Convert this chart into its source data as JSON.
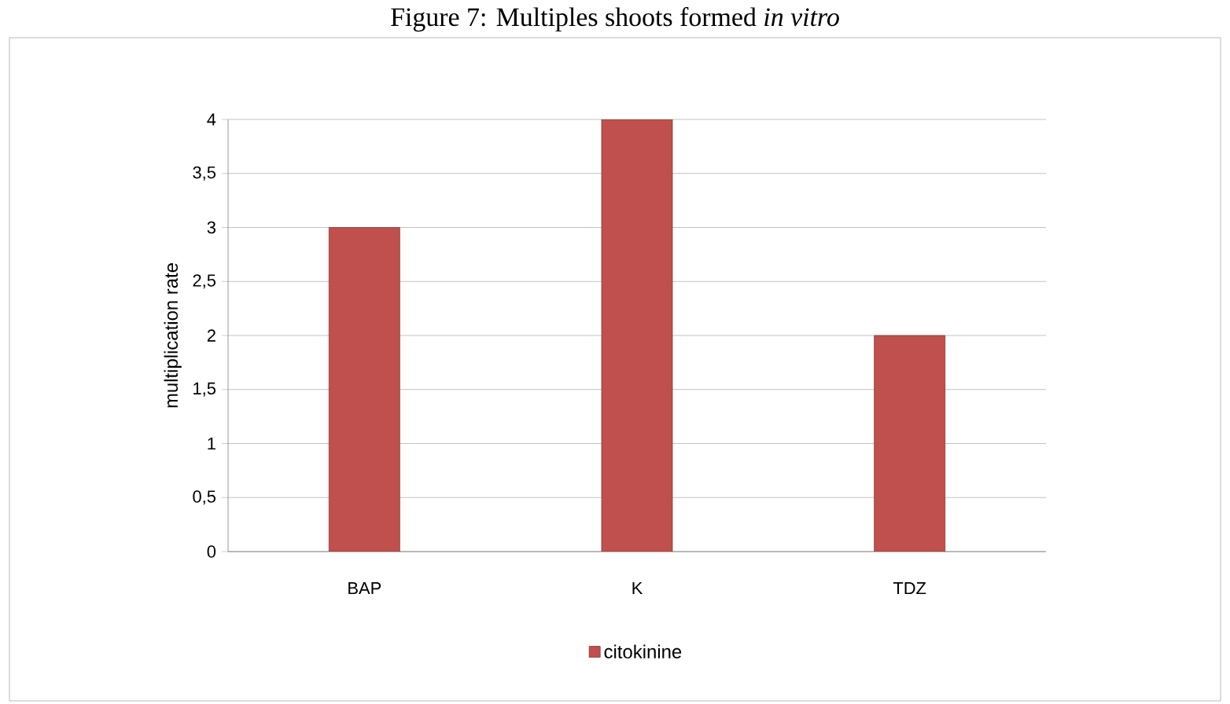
{
  "chart_data": {
    "type": "bar",
    "title": "Figure 7: Multiples shoots formed *in vitro*",
    "ylabel": "multiplication rate",
    "categories": [
      "BAP",
      "K",
      "TDZ"
    ],
    "series": [
      {
        "name": "citokinine",
        "color": "#c0504d",
        "values": [
          3,
          4,
          2
        ]
      }
    ],
    "ylim": [
      0,
      4
    ],
    "yticks": [
      0,
      {
        "value": 0.5,
        "label": "0,5"
      },
      1,
      {
        "value": 1.5,
        "label": "1,5"
      },
      2,
      {
        "value": 2.5,
        "label": "2,5"
      },
      3,
      {
        "value": 3.5,
        "label": "3,5"
      },
      4
    ],
    "grid": "y",
    "legend": "bottom"
  }
}
